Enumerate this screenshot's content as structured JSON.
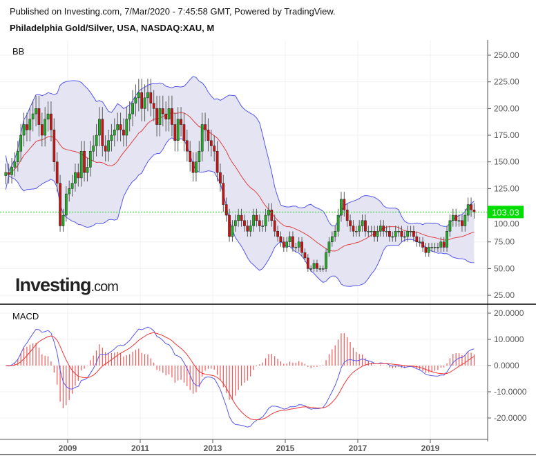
{
  "header": {
    "published": "Published on Investing.com, 7/Mar/2020 - 7:45:58 GMT, Powered by TradingView.",
    "title": "Philadelphia Gold/Silver, USA, NASDAQ:XAU, M"
  },
  "logo": {
    "text": "Investing",
    "suffix": ".com"
  },
  "chart_data": [
    {
      "type": "candlestick",
      "title": "BB",
      "indicator": "Bollinger Bands (20)",
      "start": "2007-04",
      "interval": "month",
      "closes": [
        140,
        138,
        145,
        150,
        160,
        175,
        185,
        180,
        190,
        195,
        200,
        185,
        175,
        190,
        195,
        180,
        150,
        130,
        90,
        100,
        120,
        125,
        130,
        140,
        135,
        160,
        140,
        145,
        160,
        165,
        175,
        190,
        165,
        160,
        170,
        175,
        180,
        185,
        180,
        175,
        190,
        195,
        205,
        210,
        215,
        200,
        210,
        215,
        205,
        200,
        185,
        200,
        195,
        190,
        200,
        185,
        170,
        190,
        185,
        170,
        160,
        150,
        140,
        150,
        160,
        185,
        180,
        170,
        165,
        160,
        140,
        130,
        110,
        100,
        80,
        90,
        95,
        100,
        95,
        90,
        85,
        90,
        100,
        95,
        90,
        90,
        100,
        105,
        95,
        85,
        80,
        75,
        70,
        75,
        80,
        70,
        70,
        75,
        65,
        60,
        50,
        50,
        55,
        50,
        50,
        50,
        65,
        75,
        80,
        85,
        100,
        115,
        105,
        95,
        90,
        85,
        85,
        90,
        95,
        85,
        85,
        85,
        80,
        85,
        90,
        85,
        85,
        80,
        80,
        85,
        85,
        80,
        80,
        85,
        85,
        80,
        75,
        75,
        70,
        65,
        70,
        70,
        70,
        70,
        75,
        70,
        85,
        95,
        100,
        95,
        95,
        90,
        100,
        110,
        105,
        103.03
      ],
      "ylim": [
        15,
        262
      ],
      "yticks": [
        "250.00",
        "225.00",
        "200.00",
        "175.00",
        "150.00",
        "125.00",
        "100.00",
        "75.00",
        "50.00",
        "25.00"
      ],
      "ytick_values": [
        250,
        225,
        200,
        175,
        150,
        125,
        100,
        75,
        50,
        25
      ],
      "last_price": "103.03",
      "colors": {
        "up": "#22aa22",
        "down": "#cc1111",
        "band": "#5555ee",
        "basis": "#e04040",
        "fill": "#e4e4f2",
        "last": "#00dd00"
      }
    },
    {
      "type": "line",
      "title": "MACD",
      "ylim": [
        -28,
        23
      ],
      "yticks": [
        "20.0000",
        "10.0000",
        "0.0000",
        "-10.0000",
        "-20.0000"
      ],
      "ytick_values": [
        20,
        10,
        0,
        -10,
        -20
      ],
      "series": [
        {
          "name": "MACD",
          "color": "#5555ee"
        },
        {
          "name": "Signal",
          "color": "#ee3333"
        },
        {
          "name": "Histogram",
          "color": "#ee5555"
        }
      ]
    }
  ],
  "xaxis": {
    "labels": [
      "2009",
      "2011",
      "2013",
      "2015",
      "2017",
      "2019"
    ],
    "values": [
      2009,
      2011,
      2013,
      2015,
      2017,
      2019
    ]
  }
}
